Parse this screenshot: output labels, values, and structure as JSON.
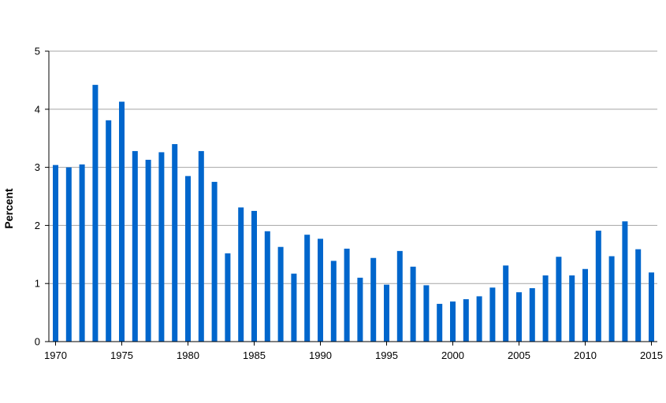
{
  "chart_data": {
    "type": "bar",
    "title": "",
    "xlabel": "",
    "ylabel": "Percent",
    "ylim": [
      0,
      5
    ],
    "y_ticks": [
      0,
      1,
      2,
      3,
      4,
      5
    ],
    "x_tick_labels": [
      "1970",
      "1975",
      "1980",
      "1985",
      "1990",
      "1995",
      "2000",
      "2005",
      "2010",
      "2015"
    ],
    "grid": "horizontal",
    "bar_color": "#0066CC",
    "categories": [
      1970,
      1971,
      1972,
      1973,
      1974,
      1975,
      1976,
      1977,
      1978,
      1979,
      1980,
      1981,
      1982,
      1983,
      1984,
      1985,
      1986,
      1987,
      1988,
      1989,
      1990,
      1991,
      1992,
      1993,
      1994,
      1995,
      1996,
      1997,
      1998,
      1999,
      2000,
      2001,
      2002,
      2003,
      2004,
      2005,
      2006,
      2007,
      2008,
      2009,
      2010,
      2011,
      2012,
      2013,
      2014,
      2015
    ],
    "values": [
      3.04,
      3.0,
      3.05,
      4.42,
      3.81,
      4.13,
      3.28,
      3.13,
      3.26,
      3.4,
      2.85,
      3.28,
      2.75,
      1.52,
      2.31,
      2.25,
      1.9,
      1.63,
      1.17,
      1.84,
      1.77,
      1.39,
      1.6,
      1.1,
      1.44,
      0.98,
      1.56,
      1.29,
      0.97,
      0.65,
      0.69,
      0.73,
      0.78,
      0.93,
      1.31,
      0.85,
      0.92,
      1.14,
      1.46,
      1.14,
      1.25,
      1.91,
      1.47,
      2.07,
      1.59,
      1.19
    ]
  }
}
